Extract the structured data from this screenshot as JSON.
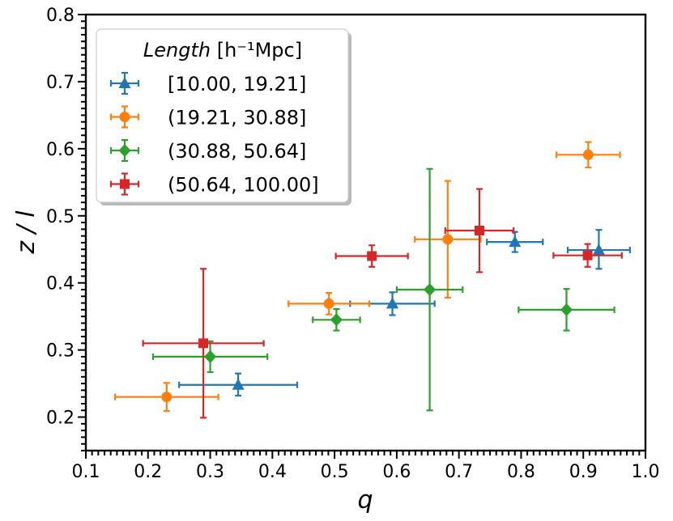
{
  "chart_data": {
    "type": "scatter",
    "title": "",
    "xlabel": "q",
    "ylabel": "z / l",
    "xlim": [
      0.1,
      1.0
    ],
    "ylim": [
      0.15,
      0.8
    ],
    "x_ticks": [
      0.1,
      0.2,
      0.3,
      0.4,
      0.5,
      0.6,
      0.7,
      0.8,
      0.9,
      1.0
    ],
    "x_tick_labels": [
      "0.1",
      "0.2",
      "0.3",
      "0.4",
      "0.5",
      "0.6",
      "0.7",
      "0.8",
      "0.9",
      "1.0"
    ],
    "y_ticks": [
      0.2,
      0.3,
      0.4,
      0.5,
      0.6,
      0.7,
      0.8
    ],
    "y_tick_labels": [
      "0.2",
      "0.3",
      "0.4",
      "0.5",
      "0.6",
      "0.7",
      "0.8"
    ],
    "grid": false,
    "legend": {
      "placement": "top-left",
      "title_italic": "Length",
      "title_unit": " [h⁻¹Mpc]"
    },
    "series": [
      {
        "name": "[10.00, 19.21]",
        "color": "#1f77b4",
        "marker": "triangle",
        "points": [
          {
            "x": 0.345,
            "y": 0.248,
            "xerr": [
              0.095,
              0.095
            ],
            "yerr": [
              0.016,
              0.017
            ]
          },
          {
            "x": 0.593,
            "y": 0.369,
            "xerr": [
              0.068,
              0.068
            ],
            "yerr": [
              0.017,
              0.017
            ]
          },
          {
            "x": 0.79,
            "y": 0.461,
            "xerr": [
              0.045,
              0.045
            ],
            "yerr": [
              0.015,
              0.015
            ]
          },
          {
            "x": 0.925,
            "y": 0.449,
            "xerr": [
              0.05,
              0.05
            ],
            "yerr": [
              0.028,
              0.03
            ]
          }
        ]
      },
      {
        "name": "(19.21, 30.88]",
        "color": "#ff7f0e",
        "marker": "circle",
        "points": [
          {
            "x": 0.23,
            "y": 0.23,
            "xerr": [
              0.083,
              0.083
            ],
            "yerr": [
              0.021,
              0.021
            ]
          },
          {
            "x": 0.491,
            "y": 0.369,
            "xerr": [
              0.065,
              0.065
            ],
            "yerr": [
              0.016,
              0.016
            ]
          },
          {
            "x": 0.682,
            "y": 0.465,
            "xerr": [
              0.053,
              0.053
            ],
            "yerr": [
              0.087,
              0.087
            ]
          },
          {
            "x": 0.908,
            "y": 0.591,
            "xerr": [
              0.051,
              0.051
            ],
            "yerr": [
              0.019,
              0.019
            ]
          }
        ]
      },
      {
        "name": "(30.88, 50.64]",
        "color": "#2ca02c",
        "marker": "diamond",
        "points": [
          {
            "x": 0.3,
            "y": 0.29,
            "xerr": [
              0.092,
              0.092
            ],
            "yerr": [
              0.023,
              0.023
            ]
          },
          {
            "x": 0.503,
            "y": 0.345,
            "xerr": [
              0.038,
              0.038
            ],
            "yerr": [
              0.016,
              0.016
            ]
          },
          {
            "x": 0.653,
            "y": 0.39,
            "xerr": [
              0.053,
              0.053
            ],
            "yerr": [
              0.18,
              0.18
            ]
          },
          {
            "x": 0.873,
            "y": 0.36,
            "xerr": [
              0.077,
              0.077
            ],
            "yerr": [
              0.031,
              0.031
            ]
          }
        ]
      },
      {
        "name": "(50.64, 100.00]",
        "color": "#d62728",
        "marker": "square",
        "points": [
          {
            "x": 0.289,
            "y": 0.31,
            "xerr": [
              0.097,
              0.097
            ],
            "yerr": [
              0.111,
              0.111
            ]
          },
          {
            "x": 0.56,
            "y": 0.44,
            "xerr": [
              0.058,
              0.058
            ],
            "yerr": [
              0.016,
              0.016
            ]
          },
          {
            "x": 0.733,
            "y": 0.478,
            "xerr": [
              0.055,
              0.055
            ],
            "yerr": [
              0.062,
              0.062
            ]
          },
          {
            "x": 0.907,
            "y": 0.441,
            "xerr": [
              0.055,
              0.055
            ],
            "yerr": [
              0.017,
              0.017
            ]
          }
        ]
      }
    ]
  }
}
